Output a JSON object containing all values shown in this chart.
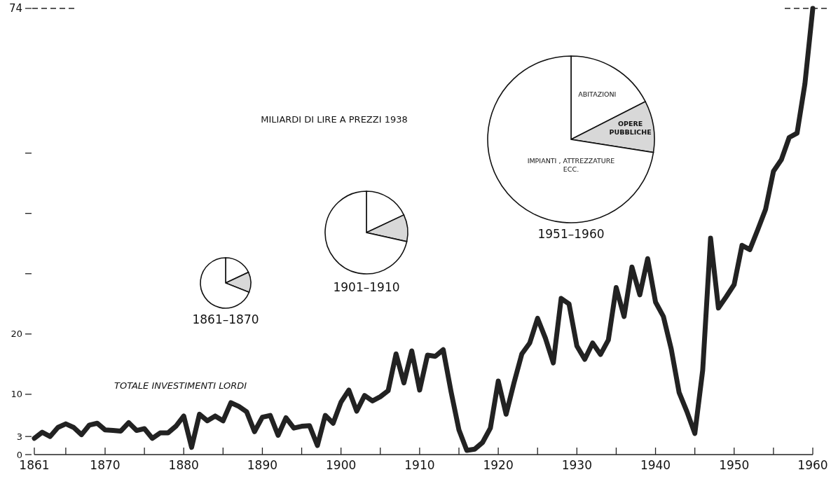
{
  "chart_data": [
    {
      "type": "line",
      "ylabel": "MILIARDI DI LIRE A PREZZI 1938",
      "x": [
        1861,
        1862,
        1863,
        1864,
        1865,
        1866,
        1867,
        1868,
        1869,
        1870,
        1871,
        1872,
        1873,
        1874,
        1875,
        1876,
        1877,
        1878,
        1879,
        1880,
        1881,
        1882,
        1883,
        1884,
        1885,
        1886,
        1887,
        1888,
        1889,
        1890,
        1891,
        1892,
        1893,
        1894,
        1895,
        1896,
        1897,
        1898,
        1899,
        1900,
        1901,
        1902,
        1903,
        1904,
        1905,
        1906,
        1907,
        1908,
        1909,
        1910,
        1911,
        1912,
        1913,
        1914,
        1915,
        1916,
        1917,
        1918,
        1919,
        1920,
        1921,
        1922,
        1923,
        1924,
        1925,
        1926,
        1927,
        1928,
        1929,
        1930,
        1931,
        1932,
        1933,
        1934,
        1935,
        1936,
        1937,
        1938,
        1939,
        1940,
        1941,
        1942,
        1943,
        1944,
        1945,
        1946,
        1947,
        1948,
        1949,
        1950,
        1951,
        1952,
        1953,
        1954,
        1955,
        1956,
        1957,
        1958,
        1959,
        1960
      ],
      "series": [
        {
          "name": "TOTALE INVESTIMENTI LORDI",
          "color": "#222222",
          "values": [
            2.7,
            3.7,
            3.0,
            4.5,
            5.1,
            4.5,
            3.3,
            4.9,
            5.2,
            4.1,
            4.0,
            3.9,
            5.3,
            4.0,
            4.3,
            2.7,
            3.6,
            3.6,
            4.7,
            6.4,
            1.2,
            6.7,
            5.6,
            6.4,
            5.6,
            8.6,
            8.0,
            7.1,
            3.8,
            6.2,
            6.5,
            3.2,
            6.1,
            4.4,
            4.7,
            4.8,
            1.5,
            6.5,
            5.2,
            8.7,
            10.7,
            7.2,
            9.8,
            8.9,
            9.6,
            10.6,
            16.7,
            11.9,
            17.2,
            10.7,
            16.5,
            16.3,
            17.4,
            10.4,
            4.1,
            0.7,
            0.9,
            2.0,
            4.4,
            12.2,
            6.7,
            11.9,
            16.7,
            18.5,
            22.6,
            19.3,
            15.2,
            25.9,
            25.0,
            18.0,
            15.8,
            18.5,
            16.6,
            19.0,
            27.7,
            22.9,
            31.1,
            26.5,
            32.5,
            25.3,
            22.9,
            17.5,
            10.3,
            7.1,
            3.5,
            14.0,
            35.9,
            24.3,
            26.2,
            28.2,
            34.7,
            34.0,
            37.3,
            40.7,
            47.0,
            48.9,
            52.6,
            53.3,
            61.5,
            74
          ]
        }
      ],
      "xlim": [
        1861,
        1960
      ],
      "xticks": [
        1861,
        {
          "value": 1865,
          "label": null
        },
        1870,
        {
          "value": 1875,
          "label": null
        },
        1880,
        {
          "value": 1885,
          "label": null
        },
        1890,
        {
          "value": 1895,
          "label": null
        },
        1900,
        {
          "value": 1905,
          "label": null
        },
        1910,
        {
          "value": 1915,
          "label": null
        },
        1920,
        {
          "value": 1925,
          "label": null
        },
        1930,
        {
          "value": 1935,
          "label": null
        },
        1940,
        {
          "value": 1945,
          "label": null
        },
        1950,
        {
          "value": 1955,
          "label": null
        },
        1960
      ],
      "ylim": [
        0,
        74
      ],
      "yticks": [
        0,
        3,
        10,
        20,
        {
          "value": 30,
          "label": null
        },
        {
          "value": 40,
          "label": null
        },
        {
          "value": 50,
          "label": null
        },
        74
      ],
      "ref_lines": [
        {
          "axis": "y",
          "value": 74,
          "line_style": "dashed",
          "color": "#222222"
        }
      ]
    },
    {
      "type": "pie",
      "title": "1861–1870",
      "categories": [
        null,
        null,
        null
      ],
      "values": [
        18,
        13,
        69
      ],
      "colors": [
        "#ffffff",
        "#d8d8d8",
        "#ffffff"
      ]
    },
    {
      "type": "pie",
      "title": "1901–1910",
      "categories": [
        null,
        null,
        null
      ],
      "values": [
        18,
        10.5,
        71.5
      ],
      "colors": [
        "#ffffff",
        "#d8d8d8",
        "#ffffff"
      ]
    },
    {
      "type": "pie",
      "title": "1951–1960",
      "categories": [
        "ABITAZIONI",
        "OPERE PUBBLICHE",
        "IMPIANTI , ATTREZZATURE ECC."
      ],
      "values": [
        17.5,
        10,
        72.5
      ],
      "colors": [
        "#ffffff",
        "#d8d8d8",
        "#ffffff"
      ]
    }
  ]
}
